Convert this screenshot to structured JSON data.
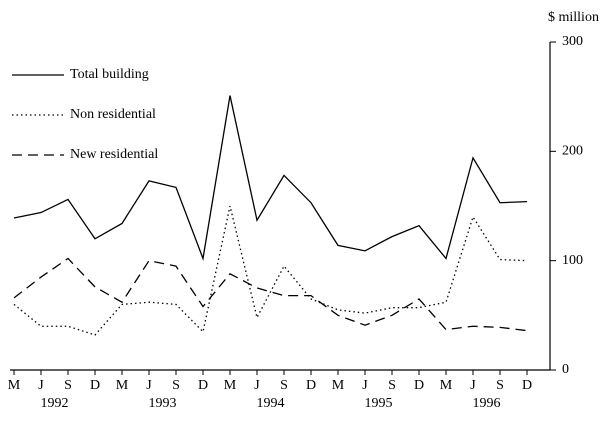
{
  "chart_data": {
    "type": "line",
    "y_label": "$ million",
    "categories": [
      "M",
      "J",
      "S",
      "D",
      "M",
      "J",
      "S",
      "D",
      "M",
      "J",
      "S",
      "D",
      "M",
      "J",
      "S",
      "D",
      "M",
      "J",
      "S",
      "D"
    ],
    "year_labels": [
      "1992",
      "1993",
      "1994",
      "1995",
      "1996"
    ],
    "series": [
      {
        "name": "Total building",
        "color": "#000000",
        "style": "solid",
        "values": [
          139,
          144,
          156,
          120,
          134,
          173,
          167,
          102,
          251,
          137,
          178,
          153,
          114,
          109,
          122,
          132,
          102,
          194,
          153,
          154
        ]
      },
      {
        "name": "Non residential",
        "color": "#000000",
        "style": "dotted",
        "values": [
          60,
          40,
          40,
          32,
          60,
          62,
          60,
          35,
          150,
          48,
          95,
          65,
          55,
          52,
          57,
          57,
          62,
          140,
          101,
          100
        ]
      },
      {
        "name": "New residential",
        "color": "#000000",
        "style": "dashed",
        "values": [
          66,
          85,
          102,
          76,
          62,
          100,
          95,
          58,
          88,
          75,
          68,
          68,
          50,
          41,
          50,
          65,
          37,
          40,
          39,
          36
        ]
      }
    ],
    "ylim": [
      0,
      300
    ],
    "yticks": [
      0,
      100,
      200,
      300
    ]
  }
}
